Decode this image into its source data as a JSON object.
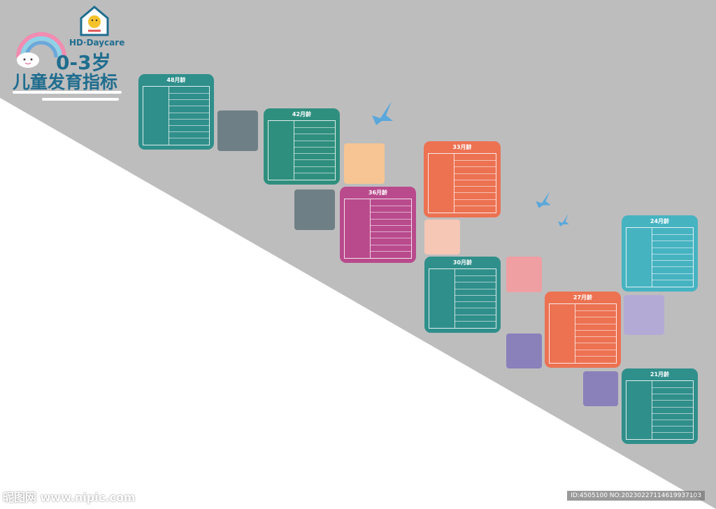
{
  "brand": {
    "logo_text": "HD·Daycare",
    "title_line1": "0-3岁",
    "title_line2": "儿童发育指标"
  },
  "colors": {
    "wall_grey": "#bdbdbe",
    "floor_white": "#ffffff",
    "teal_dark": "#2f8f8b",
    "teal_mid": "#3aa39a",
    "magenta": "#b94a8c",
    "coral": "#ec7252",
    "cyan": "#46b3c1",
    "title_blue": "#1f6d8e",
    "bird_blue": "#5aa7db"
  },
  "cards": [
    {
      "id": "m48",
      "title": "48月龄",
      "color": "#2f8f8b"
    },
    {
      "id": "m42",
      "title": "42月龄",
      "color": "#2f8f7e"
    },
    {
      "id": "m36",
      "title": "36月龄",
      "color": "#b94a8c"
    },
    {
      "id": "m33",
      "title": "33月龄",
      "color": "#ec7252"
    },
    {
      "id": "m30",
      "title": "30月龄",
      "color": "#2f8f8b"
    },
    {
      "id": "m27",
      "title": "27月龄",
      "color": "#ec7252"
    },
    {
      "id": "m24",
      "title": "24月龄",
      "color": "#46b3c1"
    },
    {
      "id": "m21",
      "title": "21月龄",
      "color": "#2f8f8b"
    }
  ],
  "squares": [
    {
      "name": "square-grey-1",
      "color": "#6f7f86"
    },
    {
      "name": "square-peach-1",
      "color": "#f6c593"
    },
    {
      "name": "square-grey-2",
      "color": "#6f7f86"
    },
    {
      "name": "square-peach-2",
      "color": "#f6c7b5"
    },
    {
      "name": "square-pink",
      "color": "#ef9ea2"
    },
    {
      "name": "square-lavender-1",
      "color": "#b3abd5"
    },
    {
      "name": "square-purple-1",
      "color": "#8a80ba"
    },
    {
      "name": "square-purple-2",
      "color": "#8a80ba"
    }
  ],
  "footer": {
    "watermark": "昵图网 www.nipic.com",
    "id_text": "ID:4505100 NO:20230227114619937103"
  }
}
